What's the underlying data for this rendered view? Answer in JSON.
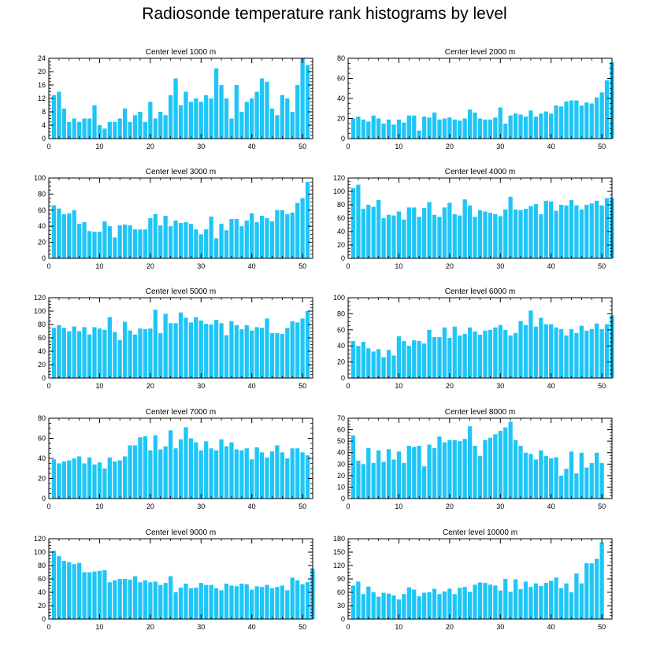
{
  "title": "Radiosonde temperature rank histograms by level",
  "colors": {
    "bar": "#1ec6f7",
    "axis": "#000000",
    "background": "#ffffff"
  },
  "chart_data": [
    {
      "type": "bar",
      "title": "Center level 1000 m",
      "xlim": [
        0,
        52
      ],
      "ylim": [
        0,
        24
      ],
      "xticks": [
        0,
        10,
        20,
        30,
        40,
        50
      ],
      "yticks": [
        0,
        4,
        8,
        12,
        16,
        20,
        24
      ],
      "values": [
        13,
        14,
        9,
        5,
        6,
        5,
        6,
        6,
        10,
        4,
        3,
        5,
        5,
        6,
        9,
        5,
        7,
        8,
        5,
        11,
        6,
        8,
        7,
        13,
        18,
        10,
        14,
        11,
        12,
        11,
        13,
        12,
        21,
        16,
        12,
        6,
        16,
        8,
        11,
        12,
        14,
        18,
        17,
        9,
        7,
        13,
        12,
        8,
        16,
        24,
        22
      ]
    },
    {
      "type": "bar",
      "title": "Center level 2000 m",
      "xlim": [
        0,
        52
      ],
      "ylim": [
        0,
        80
      ],
      "xticks": [
        0,
        10,
        20,
        30,
        40,
        50
      ],
      "yticks": [
        0,
        20,
        40,
        60,
        80
      ],
      "values": [
        20,
        22,
        19,
        17,
        23,
        20,
        15,
        19,
        14,
        19,
        16,
        23,
        23,
        8,
        22,
        21,
        26,
        19,
        20,
        21,
        19,
        18,
        20,
        29,
        26,
        20,
        19,
        19,
        21,
        31,
        15,
        23,
        25,
        24,
        22,
        28,
        22,
        25,
        27,
        25,
        33,
        32,
        37,
        38,
        38,
        33,
        36,
        35,
        41,
        46,
        58,
        76
      ]
    },
    {
      "type": "bar",
      "title": "Center level 3000 m",
      "xlim": [
        0,
        52
      ],
      "ylim": [
        0,
        100
      ],
      "xticks": [
        0,
        10,
        20,
        30,
        40,
        50
      ],
      "yticks": [
        0,
        20,
        40,
        60,
        80,
        100
      ],
      "values": [
        66,
        62,
        55,
        56,
        60,
        43,
        45,
        34,
        33,
        33,
        46,
        40,
        26,
        41,
        42,
        41,
        36,
        36,
        36,
        50,
        55,
        41,
        53,
        40,
        47,
        44,
        45,
        43,
        36,
        30,
        36,
        52,
        25,
        43,
        35,
        49,
        49,
        40,
        47,
        56,
        45,
        53,
        50,
        46,
        60,
        60,
        55,
        57,
        69,
        75,
        95
      ]
    },
    {
      "type": "bar",
      "title": "Center level 4000 m",
      "xlim": [
        0,
        52
      ],
      "ylim": [
        0,
        120
      ],
      "xticks": [
        0,
        10,
        20,
        30,
        40,
        50
      ],
      "yticks": [
        0,
        20,
        40,
        60,
        80,
        100,
        120
      ],
      "values": [
        105,
        110,
        74,
        80,
        77,
        87,
        60,
        65,
        64,
        70,
        58,
        76,
        76,
        62,
        75,
        84,
        65,
        62,
        76,
        83,
        66,
        64,
        88,
        79,
        62,
        72,
        70,
        68,
        66,
        63,
        73,
        92,
        73,
        72,
        74,
        78,
        81,
        66,
        86,
        85,
        71,
        80,
        79,
        87,
        79,
        73,
        80,
        82,
        86,
        79,
        90,
        90
      ]
    },
    {
      "type": "bar",
      "title": "Center level 5000 m",
      "xlim": [
        0,
        52
      ],
      "ylim": [
        0,
        120
      ],
      "xticks": [
        0,
        10,
        20,
        30,
        40,
        50
      ],
      "yticks": [
        0,
        20,
        40,
        60,
        80,
        100,
        120
      ],
      "values": [
        75,
        79,
        75,
        70,
        77,
        70,
        76,
        65,
        76,
        74,
        72,
        91,
        69,
        57,
        84,
        71,
        65,
        74,
        73,
        74,
        102,
        67,
        96,
        82,
        82,
        98,
        90,
        83,
        91,
        86,
        81,
        80,
        87,
        82,
        64,
        85,
        79,
        73,
        79,
        71,
        76,
        75,
        89,
        67,
        67,
        66,
        75,
        85,
        83,
        89,
        100
      ]
    },
    {
      "type": "bar",
      "title": "Center level 6000 m",
      "xlim": [
        0,
        52
      ],
      "ylim": [
        0,
        100
      ],
      "xticks": [
        0,
        10,
        20,
        30,
        40,
        50
      ],
      "yticks": [
        0,
        20,
        40,
        60,
        80,
        100
      ],
      "values": [
        46,
        40,
        45,
        37,
        33,
        36,
        26,
        35,
        28,
        52,
        46,
        40,
        47,
        46,
        43,
        60,
        51,
        51,
        63,
        50,
        64,
        53,
        55,
        63,
        58,
        54,
        59,
        60,
        63,
        66,
        60,
        53,
        56,
        71,
        66,
        84,
        64,
        75,
        67,
        67,
        63,
        61,
        53,
        61,
        56,
        65,
        59,
        61,
        68,
        61,
        67,
        78
      ]
    },
    {
      "type": "bar",
      "title": "Center level 7000 m",
      "xlim": [
        0,
        52
      ],
      "ylim": [
        0,
        80
      ],
      "xticks": [
        0,
        10,
        20,
        30,
        40,
        50
      ],
      "yticks": [
        0,
        20,
        40,
        60,
        80
      ],
      "values": [
        39,
        35,
        37,
        38,
        40,
        42,
        35,
        41,
        34,
        36,
        30,
        41,
        37,
        38,
        42,
        53,
        53,
        61,
        62,
        48,
        63,
        49,
        52,
        68,
        50,
        59,
        71,
        60,
        56,
        48,
        57,
        50,
        48,
        59,
        52,
        56,
        49,
        48,
        50,
        39,
        51,
        46,
        41,
        47,
        53,
        46,
        40,
        50,
        50,
        46,
        43
      ]
    },
    {
      "type": "bar",
      "title": "Center level 8000 m",
      "xlim": [
        0,
        52
      ],
      "ylim": [
        0,
        70
      ],
      "xticks": [
        0,
        10,
        20,
        30,
        40,
        50
      ],
      "yticks": [
        0,
        10,
        20,
        30,
        40,
        50,
        60,
        70
      ],
      "values": [
        55,
        33,
        30,
        44,
        31,
        42,
        32,
        43,
        34,
        41,
        31,
        46,
        45,
        46,
        28,
        47,
        44,
        54,
        49,
        51,
        51,
        50,
        52,
        63,
        46,
        37,
        51,
        53,
        56,
        59,
        62,
        67,
        51,
        46,
        40,
        39,
        34,
        42,
        37,
        35,
        36,
        20,
        26,
        41,
        22,
        40,
        27,
        31,
        40,
        31
      ]
    },
    {
      "type": "bar",
      "title": "Center level 9000 m",
      "xlim": [
        0,
        52
      ],
      "ylim": [
        0,
        120
      ],
      "xticks": [
        0,
        10,
        20,
        30,
        40,
        50
      ],
      "yticks": [
        0,
        20,
        40,
        60,
        80,
        100,
        120
      ],
      "values": [
        102,
        94,
        87,
        85,
        82,
        84,
        70,
        70,
        71,
        72,
        73,
        55,
        58,
        60,
        60,
        59,
        64,
        55,
        58,
        55,
        56,
        51,
        54,
        64,
        40,
        47,
        53,
        46,
        47,
        54,
        51,
        51,
        46,
        43,
        53,
        50,
        49,
        53,
        52,
        44,
        49,
        48,
        51,
        46,
        48,
        50,
        43,
        62,
        58,
        52,
        55,
        75
      ]
    },
    {
      "type": "bar",
      "title": "Center level 10000 m",
      "xlim": [
        0,
        52
      ],
      "ylim": [
        0,
        180
      ],
      "xticks": [
        0,
        10,
        20,
        30,
        40,
        50
      ],
      "yticks": [
        0,
        30,
        60,
        90,
        120,
        150,
        180
      ],
      "values": [
        75,
        84,
        56,
        73,
        60,
        50,
        59,
        57,
        53,
        44,
        56,
        71,
        66,
        51,
        59,
        60,
        68,
        56,
        62,
        68,
        56,
        70,
        72,
        61,
        77,
        82,
        81,
        77,
        75,
        64,
        90,
        61,
        89,
        67,
        84,
        72,
        80,
        74,
        81,
        86,
        93,
        69,
        80,
        60,
        102,
        80,
        125,
        125,
        135,
        172
      ]
    }
  ]
}
